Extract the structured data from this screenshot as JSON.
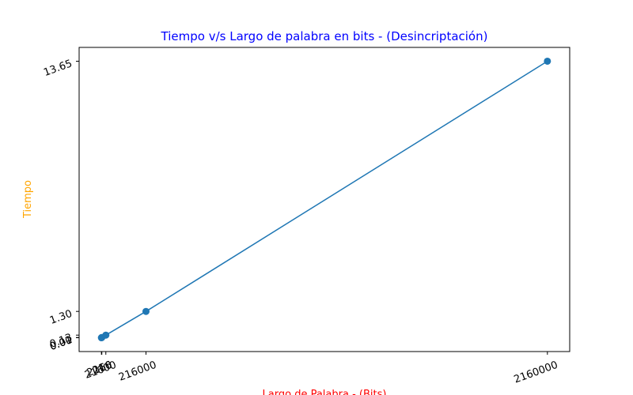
{
  "chart_data": {
    "type": "line",
    "title": "Tiempo v/s Largo de palabra en bits - (Desincriptación)",
    "x_label": "Largo de Palabra - (Bits)",
    "y_label": "Tiempo",
    "x": [
      216,
      2160,
      21600,
      216000,
      2160000
    ],
    "series": [
      {
        "color": "#1f77b4",
        "values": [
          0.001,
          0.013,
          0.13,
          1.3,
          13.65
        ]
      }
    ],
    "xlim": [
      -107773,
      2267989
    ],
    "ylim": [
      -0.681,
      14.332
    ],
    "xticks": [
      216,
      2160,
      21600,
      216000,
      2160000
    ],
    "yticks": [
      {
        "value": 0.001,
        "label": "0.00"
      },
      {
        "value": 0.013,
        "label": "0.01"
      },
      {
        "value": 0.13,
        "label": "0.13"
      },
      {
        "value": 1.3,
        "label": "1.30"
      },
      13.65
    ],
    "title_color": "blue",
    "x_label_color": "red",
    "y_label_color": "orange"
  }
}
